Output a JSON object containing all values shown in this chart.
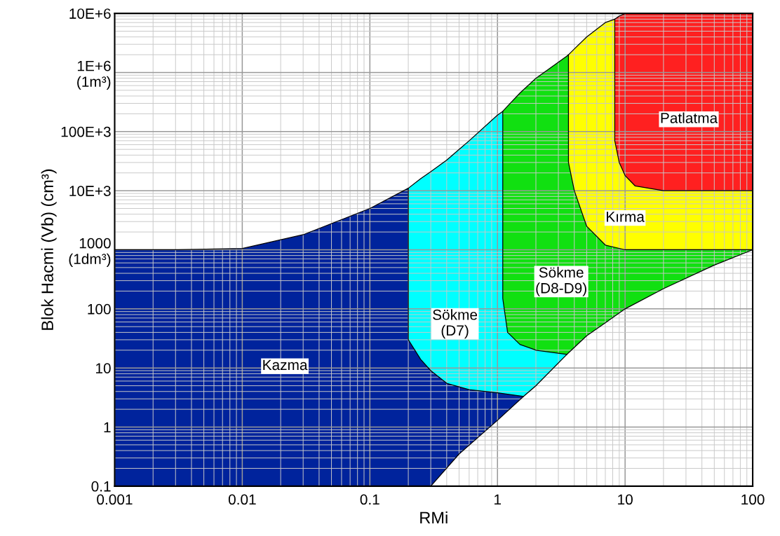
{
  "chart_data": {
    "type": "area",
    "log": "xy",
    "xlabel": "RMi",
    "ylabel": "Blok Hacmi (Vb) (cm³)",
    "grid": true,
    "xlim": [
      0.001,
      100
    ],
    "ylim": [
      0.1,
      10000000
    ],
    "xticks": [
      0.001,
      0.01,
      0.1,
      1,
      10,
      100
    ],
    "yticks": [
      0.1,
      1,
      10,
      100,
      {
        "value": 1000,
        "label": "1000\n(1dm³)"
      },
      {
        "value": 10000,
        "label": "10E+3"
      },
      {
        "value": 100000,
        "label": "100E+3"
      },
      {
        "value": 1000000,
        "label": "1E+6\n(1m³)"
      },
      {
        "value": 10000000,
        "label": "10E+6"
      }
    ],
    "series": [
      {
        "color": "#ffffff",
        "x": [
          0.3,
          0.5,
          1,
          1.6,
          2,
          3.5,
          5,
          7,
          10,
          20,
          50,
          100
        ],
        "values": [
          0.1,
          0.35,
          1.3,
          3.3,
          5,
          17,
          35,
          58,
          100,
          220,
          550,
          1000
        ]
      },
      {
        "name": "Kazma",
        "color": "#00239c",
        "x": [
          0.001,
          0.003,
          0.01,
          0.03,
          0.1,
          0.2,
          0.2,
          0.25,
          0.3,
          0.4,
          0.5,
          0.6,
          1,
          1.6
        ],
        "values": [
          1000,
          1000,
          1050,
          1800,
          5000,
          11000,
          30,
          14,
          9,
          5.5,
          4.8,
          4.3,
          3.8,
          3.3
        ]
      },
      {
        "name": "Sökme\n(D7)",
        "color": "#00ffff",
        "x": [
          0.2,
          0.25,
          0.3,
          0.4,
          0.5,
          0.6,
          1,
          1.1,
          1.1,
          1.2,
          1.5,
          2,
          3.5
        ],
        "values": [
          11000,
          16000,
          21000,
          33000,
          50000,
          70000,
          190000,
          220000,
          150,
          40,
          25,
          20,
          17
        ]
      },
      {
        "name": "Sökme\n(D8-D9)",
        "color": "#11e011",
        "x": [
          1.1,
          1.2,
          1.5,
          2,
          3.5,
          3.6,
          3.6,
          4,
          5,
          7,
          10,
          20,
          50,
          100
        ],
        "values": [
          220000,
          270000,
          450000,
          800000,
          1900000,
          2000000,
          30000,
          10000,
          2500,
          1200,
          1000,
          1000,
          1000,
          1000
        ]
      },
      {
        "name": "Kırma",
        "color": "#ffff00",
        "x": [
          3.6,
          4,
          5,
          7,
          8.3,
          8.3,
          9,
          10,
          12,
          20,
          50,
          100
        ],
        "values": [
          2000000,
          2500000,
          4000000,
          7000000,
          8000000,
          70000,
          30000,
          18000,
          12000,
          10000,
          10000,
          10000
        ]
      },
      {
        "name": "Patlatma",
        "color": "#ff2020",
        "x": [
          8.3,
          9,
          10,
          12,
          20,
          50,
          100
        ],
        "values": [
          8000000,
          9000000,
          10000000,
          10000000,
          10000000,
          10000000,
          10000000
        ]
      }
    ]
  }
}
